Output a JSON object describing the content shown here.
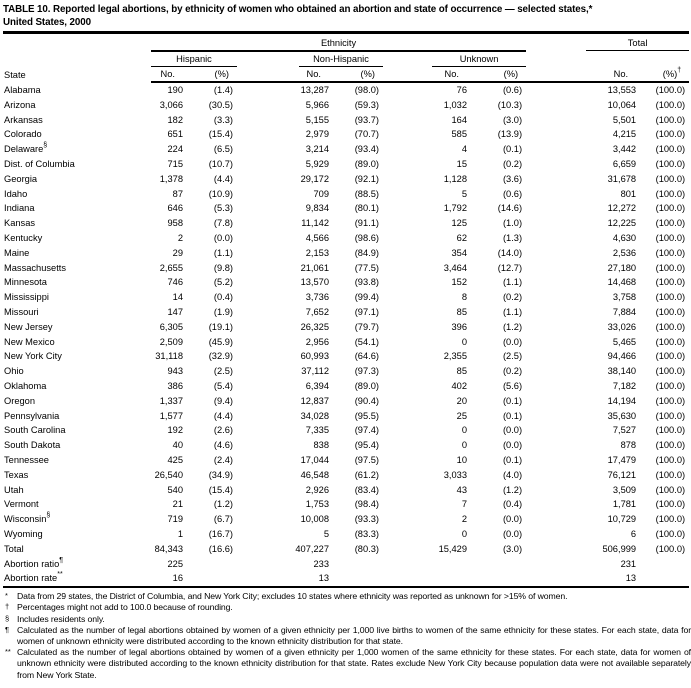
{
  "title": {
    "line1": "TABLE 10. Reported legal abortions, by ethnicity of women who obtained an abortion and state of occurrence — selected states,*",
    "line2": "United States, 2000"
  },
  "header": {
    "state": "State",
    "ethnicity": "Ethnicity",
    "groups": {
      "hispanic": "Hispanic",
      "non_hispanic": "Non-Hispanic",
      "unknown": "Unknown",
      "total": "Total"
    },
    "no": "No.",
    "pct": "(%)",
    "total_pct_marker": "†"
  },
  "table": {
    "rows": [
      {
        "state": "Alabama",
        "marker": "",
        "cells": [
          "190",
          "(1.4)",
          "13,287",
          "(98.0)",
          "76",
          "(0.6)",
          "13,553",
          "(100.0)"
        ]
      },
      {
        "state": "Arizona",
        "marker": "",
        "cells": [
          "3,066",
          "(30.5)",
          "5,966",
          "(59.3)",
          "1,032",
          "(10.3)",
          "10,064",
          "(100.0)"
        ]
      },
      {
        "state": "Arkansas",
        "marker": "",
        "cells": [
          "182",
          "(3.3)",
          "5,155",
          "(93.7)",
          "164",
          "(3.0)",
          "5,501",
          "(100.0)"
        ]
      },
      {
        "state": "Colorado",
        "marker": "",
        "cells": [
          "651",
          "(15.4)",
          "2,979",
          "(70.7)",
          "585",
          "(13.9)",
          "4,215",
          "(100.0)"
        ]
      },
      {
        "state": "Delaware",
        "marker": "§",
        "cells": [
          "224",
          "(6.5)",
          "3,214",
          "(93.4)",
          "4",
          "(0.1)",
          "3,442",
          "(100.0)"
        ]
      },
      {
        "state": "Dist. of Columbia",
        "marker": "",
        "cells": [
          "715",
          "(10.7)",
          "5,929",
          "(89.0)",
          "15",
          "(0.2)",
          "6,659",
          "(100.0)"
        ]
      },
      {
        "state": "Georgia",
        "marker": "",
        "cells": [
          "1,378",
          "(4.4)",
          "29,172",
          "(92.1)",
          "1,128",
          "(3.6)",
          "31,678",
          "(100.0)"
        ]
      },
      {
        "state": "Idaho",
        "marker": "",
        "cells": [
          "87",
          "(10.9)",
          "709",
          "(88.5)",
          "5",
          "(0.6)",
          "801",
          "(100.0)"
        ]
      },
      {
        "state": "Indiana",
        "marker": "",
        "cells": [
          "646",
          "(5.3)",
          "9,834",
          "(80.1)",
          "1,792",
          "(14.6)",
          "12,272",
          "(100.0)"
        ]
      },
      {
        "state": "Kansas",
        "marker": "",
        "cells": [
          "958",
          "(7.8)",
          "11,142",
          "(91.1)",
          "125",
          "(1.0)",
          "12,225",
          "(100.0)"
        ]
      },
      {
        "state": "Kentucky",
        "marker": "",
        "cells": [
          "2",
          "(0.0)",
          "4,566",
          "(98.6)",
          "62",
          "(1.3)",
          "4,630",
          "(100.0)"
        ]
      },
      {
        "state": "Maine",
        "marker": "",
        "cells": [
          "29",
          "(1.1)",
          "2,153",
          "(84.9)",
          "354",
          "(14.0)",
          "2,536",
          "(100.0)"
        ]
      },
      {
        "state": "Massachusetts",
        "marker": "",
        "cells": [
          "2,655",
          "(9.8)",
          "21,061",
          "(77.5)",
          "3,464",
          "(12.7)",
          "27,180",
          "(100.0)"
        ]
      },
      {
        "state": "Minnesota",
        "marker": "",
        "cells": [
          "746",
          "(5.2)",
          "13,570",
          "(93.8)",
          "152",
          "(1.1)",
          "14,468",
          "(100.0)"
        ]
      },
      {
        "state": "Mississippi",
        "marker": "",
        "cells": [
          "14",
          "(0.4)",
          "3,736",
          "(99.4)",
          "8",
          "(0.2)",
          "3,758",
          "(100.0)"
        ]
      },
      {
        "state": "Missouri",
        "marker": "",
        "cells": [
          "147",
          "(1.9)",
          "7,652",
          "(97.1)",
          "85",
          "(1.1)",
          "7,884",
          "(100.0)"
        ]
      },
      {
        "state": "New Jersey",
        "marker": "",
        "cells": [
          "6,305",
          "(19.1)",
          "26,325",
          "(79.7)",
          "396",
          "(1.2)",
          "33,026",
          "(100.0)"
        ]
      },
      {
        "state": "New Mexico",
        "marker": "",
        "cells": [
          "2,509",
          "(45.9)",
          "2,956",
          "(54.1)",
          "0",
          "(0.0)",
          "5,465",
          "(100.0)"
        ]
      },
      {
        "state": "New York City",
        "marker": "",
        "cells": [
          "31,118",
          "(32.9)",
          "60,993",
          "(64.6)",
          "2,355",
          "(2.5)",
          "94,466",
          "(100.0)"
        ]
      },
      {
        "state": "Ohio",
        "marker": "",
        "cells": [
          "943",
          "(2.5)",
          "37,112",
          "(97.3)",
          "85",
          "(0.2)",
          "38,140",
          "(100.0)"
        ]
      },
      {
        "state": "Oklahoma",
        "marker": "",
        "cells": [
          "386",
          "(5.4)",
          "6,394",
          "(89.0)",
          "402",
          "(5.6)",
          "7,182",
          "(100.0)"
        ]
      },
      {
        "state": "Oregon",
        "marker": "",
        "cells": [
          "1,337",
          "(9.4)",
          "12,837",
          "(90.4)",
          "20",
          "(0.1)",
          "14,194",
          "(100.0)"
        ]
      },
      {
        "state": "Pennsylvania",
        "marker": "",
        "cells": [
          "1,577",
          "(4.4)",
          "34,028",
          "(95.5)",
          "25",
          "(0.1)",
          "35,630",
          "(100.0)"
        ]
      },
      {
        "state": "South Carolina",
        "marker": "",
        "cells": [
          "192",
          "(2.6)",
          "7,335",
          "(97.4)",
          "0",
          "(0.0)",
          "7,527",
          "(100.0)"
        ]
      },
      {
        "state": "South Dakota",
        "marker": "",
        "cells": [
          "40",
          "(4.6)",
          "838",
          "(95.4)",
          "0",
          "(0.0)",
          "878",
          "(100.0)"
        ]
      },
      {
        "state": "Tennessee",
        "marker": "",
        "cells": [
          "425",
          "(2.4)",
          "17,044",
          "(97.5)",
          "10",
          "(0.1)",
          "17,479",
          "(100.0)"
        ]
      },
      {
        "state": "Texas",
        "marker": "",
        "cells": [
          "26,540",
          "(34.9)",
          "46,548",
          "(61.2)",
          "3,033",
          "(4.0)",
          "76,121",
          "(100.0)"
        ]
      },
      {
        "state": "Utah",
        "marker": "",
        "cells": [
          "540",
          "(15.4)",
          "2,926",
          "(83.4)",
          "43",
          "(1.2)",
          "3,509",
          "(100.0)"
        ]
      },
      {
        "state": "Vermont",
        "marker": "",
        "cells": [
          "21",
          "(1.2)",
          "1,753",
          "(98.4)",
          "7",
          "(0.4)",
          "1,781",
          "(100.0)"
        ]
      },
      {
        "state": "Wisconsin",
        "marker": "§",
        "cells": [
          "719",
          "(6.7)",
          "10,008",
          "(93.3)",
          "2",
          "(0.0)",
          "10,729",
          "(100.0)"
        ]
      },
      {
        "state": "Wyoming",
        "marker": "",
        "cells": [
          "1",
          "(16.7)",
          "5",
          "(83.3)",
          "0",
          "(0.0)",
          "6",
          "(100.0)"
        ]
      },
      {
        "state": "Total",
        "marker": "",
        "cells": [
          "84,343",
          "(16.6)",
          "407,227",
          "(80.3)",
          "15,429",
          "(3.0)",
          "506,999",
          "(100.0)"
        ]
      },
      {
        "state": "Abortion ratio",
        "marker": "¶",
        "cells": [
          "225",
          "",
          "233",
          "",
          "",
          "",
          "231",
          ""
        ]
      },
      {
        "state": "Abortion rate",
        "marker": "**",
        "cells": [
          "16",
          "",
          "13",
          "",
          "",
          "",
          "13",
          ""
        ]
      }
    ]
  },
  "footnotes": [
    {
      "marker": "*",
      "text": "Data from 29 states, the District of Columbia, and New York City; excludes 10 states where ethnicity was reported as unknown for >15% of women."
    },
    {
      "marker": "†",
      "text": "Percentages might not add to 100.0 because of rounding."
    },
    {
      "marker": "§",
      "text": "Includes residents only."
    },
    {
      "marker": "¶",
      "text": "Calculated as the number of legal abortions obtained by women of a given ethnicity per 1,000 live births to women of the same ethnicity for these states. For each state, data for women of unknown ethnicity were distributed according to the known ethnicity distribution for that state."
    },
    {
      "marker": "**",
      "text": "Calculated as the number of legal abortions obtained by women of a given ethnicity per 1,000 women of the same ethnicity for these states. For each state, data for women of unknown ethnicity were distributed according to the known ethnicity distribution for that state. Rates exclude New York City because population data were not available separately from New York State."
    }
  ]
}
